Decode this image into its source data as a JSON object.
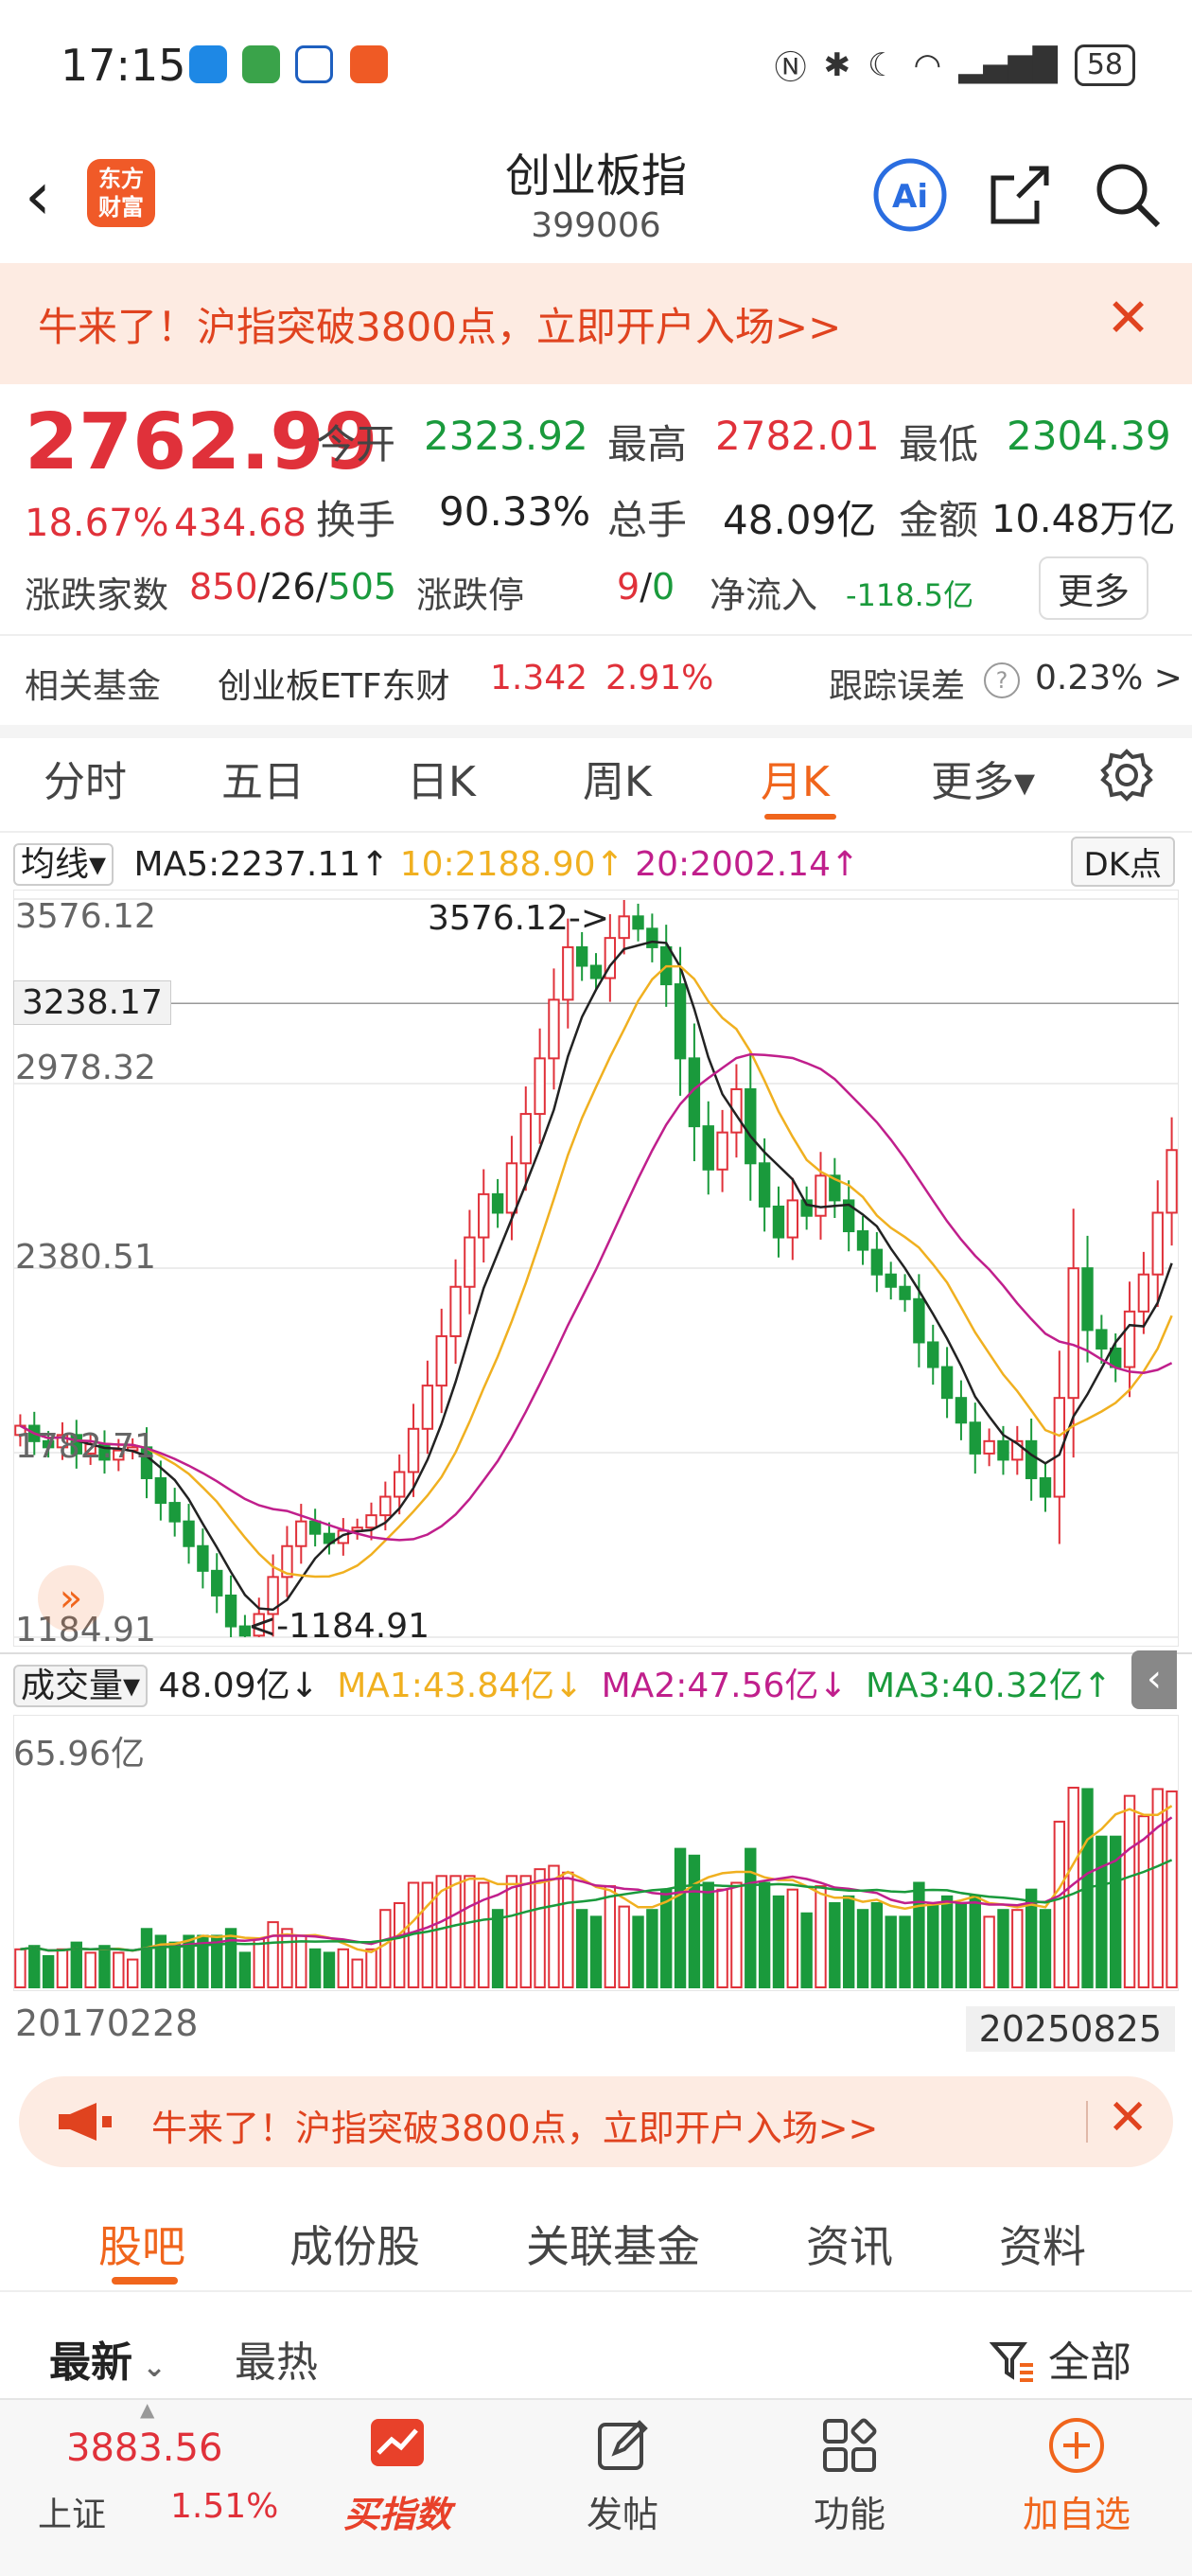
{
  "status_bar": {
    "time": "17:15",
    "battery": "58"
  },
  "header": {
    "title": "创业板指",
    "code": "399006",
    "logo_line1": "东方",
    "logo_line2": "财富",
    "ai_label": "Ai"
  },
  "banner_top": {
    "text": "牛来了！沪指突破3800点，立即开户入场>>",
    "close": "✕"
  },
  "quote": {
    "price": "2762.99",
    "change_pct": "18.67%",
    "change_abs": "434.68",
    "open_label": "今开",
    "open": "2323.92",
    "high_label": "最高",
    "high": "2782.01",
    "low_label": "最低",
    "low": "2304.39",
    "turnover_label": "换手",
    "turnover": "90.33%",
    "volume_label": "总手",
    "volume": "48.09亿",
    "amount_label": "金额",
    "amount": "10.48万亿",
    "adv_label": "涨跌家数",
    "adv_up": "850",
    "adv_flat": "26",
    "adv_down": "505",
    "limit_label": "涨跌停",
    "limit_up": "9",
    "limit_down": "0",
    "netflow_label": "净流入",
    "netflow": "-118.5亿",
    "more_button": "更多"
  },
  "fund": {
    "label": "相关基金",
    "name": "创业板ETF东财",
    "price": "1.342",
    "pct": "2.91%",
    "track_label": "跟踪误差",
    "track_value": "0.23% >"
  },
  "chart_tabs": [
    {
      "label": "分时"
    },
    {
      "label": "五日"
    },
    {
      "label": "日K"
    },
    {
      "label": "周K"
    },
    {
      "label": "月K",
      "active": true
    },
    {
      "label": "更多▾"
    }
  ],
  "ma_legend": {
    "type": "均线▾",
    "ma5": "MA5:2237.11↑",
    "ma10": "10:2188.90↑",
    "ma20": "20:2002.14↑",
    "dk": "DK点"
  },
  "chart_labels": {
    "y_top": "3576.12",
    "y_2": "2978.32",
    "y_3": "2380.51",
    "y_4": "1782.71",
    "y_bottom": "1184.91",
    "crosshair": "3238.17",
    "max_note": "3576.12->",
    "min_note": "<-1184.91"
  },
  "volume_legend": {
    "type": "成交量▾",
    "value": "48.09亿↓",
    "ma1": "MA1:43.84亿↓",
    "ma2": "MA2:47.56亿↓",
    "ma3": "MA3:40.32亿↑",
    "y_top": "65.96亿"
  },
  "dates": {
    "start": "20170228",
    "end": "20250825"
  },
  "banner_bottom": {
    "text": "牛来了！沪指突破3800点，立即开户入场>>",
    "close": "✕"
  },
  "content_tabs": [
    {
      "label": "股吧",
      "active": true
    },
    {
      "label": "成份股"
    },
    {
      "label": "关联基金"
    },
    {
      "label": "资讯"
    },
    {
      "label": "资料"
    }
  ],
  "sub_tabs": {
    "latest": "最新",
    "hot": "最热",
    "filter": "全部"
  },
  "bottom_nav": {
    "index_value": "3883.56",
    "index_name": "上证",
    "index_pct": "1.51%",
    "buy": "买指数",
    "post": "发帖",
    "func": "功能",
    "add": "加自选"
  },
  "colors": {
    "up": "#e0313a",
    "down": "#1a9a3c",
    "accent": "#f0651c",
    "ma5": "#222222",
    "ma10": "#f0b020",
    "ma20": "#c01f8c"
  },
  "chart_data": {
    "type": "candlestick",
    "ylim": [
      1184.91,
      3576.12
    ],
    "y_ticks": [
      3576.12,
      2978.32,
      2380.51,
      1782.71,
      1184.91
    ],
    "closes": [
      1870,
      1820,
      1800,
      1840,
      1780,
      1810,
      1760,
      1790,
      1800,
      1700,
      1620,
      1560,
      1480,
      1400,
      1320,
      1220,
      1190,
      1260,
      1380,
      1480,
      1560,
      1520,
      1490,
      1530,
      1540,
      1580,
      1640,
      1720,
      1860,
      2000,
      2160,
      2320,
      2480,
      2620,
      2560,
      2720,
      2880,
      3060,
      3250,
      3420,
      3360,
      3320,
      3450,
      3520,
      3480,
      3420,
      3300,
      3060,
      2840,
      2700,
      2820,
      2960,
      2720,
      2580,
      2480,
      2600,
      2550,
      2680,
      2600,
      2500,
      2440,
      2360,
      2320,
      2280,
      2140,
      2060,
      1960,
      1880,
      1780,
      1820,
      1760,
      1820,
      1700,
      1640,
      1960,
      2380,
      2180,
      2120,
      2060,
      2240,
      2360,
      2560,
      2762.99
    ],
    "volume_ylim_yi": [
      0,
      65.96
    ],
    "volume_last_yi": 48.09
  }
}
